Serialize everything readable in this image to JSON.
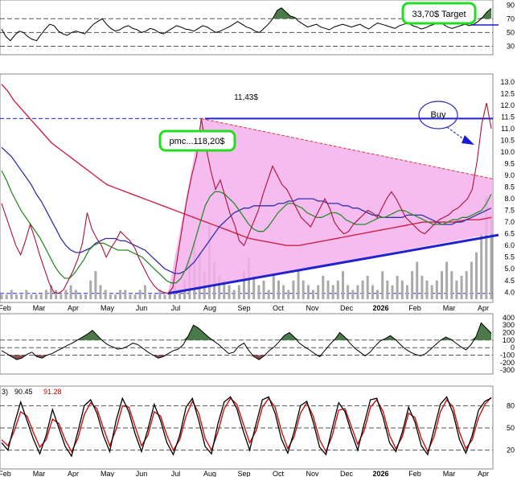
{
  "chart_data": {
    "type": "line",
    "panels": [
      {
        "id": "rsi",
        "ylim": [
          20,
          95
        ],
        "yticks": [
          30,
          50,
          70,
          90
        ],
        "ref_lines": [
          30,
          50,
          70
        ],
        "series": [
          {
            "values": [
              55,
              44,
              38,
              46,
              52,
              50,
              44,
              40,
              38,
              47,
              55,
              62,
              60,
              52,
              48,
              46,
              50,
              52,
              50,
              48,
              55,
              62,
              66,
              70,
              62,
              56,
              52,
              54,
              58,
              60,
              56,
              54,
              50,
              52,
              56,
              54,
              50,
              48,
              52,
              56,
              60,
              58,
              55,
              54,
              52,
              56,
              60,
              58,
              54,
              50,
              52,
              55,
              58,
              62,
              66,
              62,
              58,
              56,
              52,
              50,
              56,
              62,
              70,
              82,
              86,
              80,
              74,
              72,
              66,
              62,
              58,
              60,
              62,
              58,
              56,
              54,
              58,
              60,
              62,
              60,
              58,
              60,
              62,
              58,
              55,
              60,
              64,
              62,
              60,
              58,
              56,
              60,
              62,
              64,
              60,
              58,
              55,
              57,
              60,
              62,
              66,
              62,
              58,
              56,
              58,
              60,
              62,
              60,
              62,
              66,
              72,
              80,
              85
            ]
          }
        ]
      },
      {
        "id": "price",
        "ylim": [
          3.7,
          13.2
        ],
        "yticks": [
          4.0,
          4.5,
          5.0,
          5.5,
          6.0,
          6.5,
          7.0,
          7.5,
          8.0,
          8.5,
          9.0,
          9.5,
          10.0,
          10.5,
          11.0,
          11.5,
          12.0,
          12.5,
          13.0
        ],
        "ref_lines": [
          11.43,
          3.95
        ],
        "series": [
          {
            "name": "price",
            "values": [
              7.8,
              7.2,
              6.6,
              6.0,
              5.6,
              6.2,
              6.9,
              6.3,
              5.6,
              5.0,
              4.4,
              4.0,
              3.95,
              4.1,
              4.5,
              4.9,
              5.4,
              6.1,
              7.4,
              6.7,
              6.3,
              6.0,
              5.5,
              5.9,
              6.2,
              6.6,
              6.4,
              6.2,
              5.9,
              5.4,
              5.0,
              4.6,
              4.3,
              4.1,
              4.0,
              3.95,
              4.2,
              5.5,
              6.8,
              8.0,
              9.0,
              9.8,
              11.43,
              10.2,
              9.2,
              8.4,
              8.8,
              8.1,
              7.4,
              6.9,
              6.2,
              6.0,
              6.5,
              7.0,
              7.5,
              8.2,
              8.8,
              9.4,
              9.0,
              8.6,
              8.4,
              8.0,
              7.6,
              7.2,
              7.0,
              6.8,
              7.2,
              7.6,
              8.0,
              7.6,
              7.0,
              6.7,
              6.5,
              6.6,
              6.9,
              7.1,
              7.3,
              7.5,
              7.4,
              7.2,
              7.6,
              8.0,
              8.3,
              8.0,
              7.6,
              7.2,
              7.0,
              6.8,
              6.6,
              6.5,
              6.7,
              6.9,
              7.1,
              7.2,
              7.3,
              7.5,
              7.6,
              7.8,
              8.0,
              8.4,
              9.6,
              11.2,
              12.1,
              11.0
            ]
          },
          {
            "name": "ma-green",
            "values": [
              9.2,
              8.8,
              8.3,
              7.9,
              7.5,
              7.2,
              6.9,
              6.6,
              6.3,
              5.9,
              5.5,
              5.1,
              4.8,
              4.6,
              4.6,
              4.8,
              5.1,
              5.4,
              5.8,
              6.0,
              6.1,
              6.1,
              6.0,
              5.9,
              5.8,
              5.8,
              5.8,
              5.7,
              5.6,
              5.5,
              5.3,
              5.1,
              4.9,
              4.7,
              4.5,
              4.4,
              4.4,
              4.6,
              5.0,
              5.6,
              6.3,
              7.0,
              7.7,
              8.1,
              8.3,
              8.3,
              8.2,
              8.0,
              7.8,
              7.5,
              7.2,
              6.9,
              6.7,
              6.6,
              6.6,
              6.8,
              7.1,
              7.4,
              7.6,
              7.8,
              7.8,
              7.7,
              7.6,
              7.4,
              7.3,
              7.2,
              7.2,
              7.3,
              7.4,
              7.4,
              7.3,
              7.1,
              7.0,
              6.9,
              6.9,
              6.9,
              7.0,
              7.1,
              7.2,
              7.2,
              7.3,
              7.4,
              7.5,
              7.5,
              7.4,
              7.3,
              7.2,
              7.1,
              7.0,
              6.9,
              6.9,
              6.9,
              7.0,
              7.1,
              7.1,
              7.2,
              7.2,
              7.3,
              7.4,
              7.5,
              7.8,
              8.2
            ]
          },
          {
            "name": "ma-blue",
            "values": [
              10.2,
              10.0,
              9.8,
              9.5,
              9.2,
              8.9,
              8.6,
              8.2,
              7.9,
              7.5,
              7.1,
              6.7,
              6.3,
              6.0,
              5.8,
              5.7,
              5.7,
              5.8,
              5.9,
              6.1,
              6.2,
              6.3,
              6.3,
              6.3,
              6.2,
              6.2,
              6.1,
              6.0,
              5.9,
              5.8,
              5.6,
              5.4,
              5.2,
              5.0,
              4.9,
              4.8,
              4.8,
              4.9,
              5.1,
              5.3,
              5.6,
              5.9,
              6.2,
              6.5,
              6.8,
              7.0,
              7.2,
              7.4,
              7.5,
              7.6,
              7.6,
              7.7,
              7.7,
              7.7,
              7.7,
              7.7,
              7.8,
              7.8,
              7.9,
              7.9,
              8.0,
              8.0,
              8.0,
              8.0,
              7.9,
              7.9,
              7.8,
              7.8,
              7.8,
              7.7,
              7.7,
              7.6,
              7.6,
              7.5,
              7.4,
              7.3,
              7.3,
              7.2,
              7.2,
              7.2,
              7.2,
              7.2,
              7.3,
              7.3,
              7.3,
              7.3,
              7.2,
              7.1,
              7.0,
              6.9,
              6.9,
              6.9,
              7.0,
              7.0,
              7.1,
              7.2,
              7.3,
              7.4,
              7.5,
              7.6
            ]
          },
          {
            "name": "ma-red",
            "values": [
              12.9,
              12.6,
              12.2,
              11.9,
              11.6,
              11.3,
              11.0,
              10.7,
              10.4,
              10.2,
              10.0,
              9.8,
              9.6,
              9.4,
              9.2,
              9.0,
              8.8,
              8.6,
              8.5,
              8.4,
              8.3,
              8.2,
              8.1,
              8.0,
              7.9,
              7.8,
              7.7,
              7.6,
              7.5,
              7.4,
              7.3,
              7.2,
              7.1,
              7.0,
              6.9,
              6.8,
              6.7,
              6.6,
              6.5,
              6.4,
              6.3,
              6.25,
              6.2,
              6.15,
              6.1,
              6.05,
              6.0,
              6.0,
              6.0,
              6.05,
              6.1,
              6.15,
              6.2,
              6.25,
              6.3,
              6.35,
              6.4,
              6.45,
              6.5,
              6.55,
              6.6,
              6.65,
              6.7,
              6.75,
              6.8,
              6.85,
              6.9,
              6.95,
              7.0,
              7.0,
              7.0,
              7.0,
              7.0,
              7.0,
              7.05,
              7.1,
              7.1,
              7.1,
              7.15,
              7.2
            ]
          }
        ]
      },
      {
        "id": "cci",
        "ylim": [
          -320,
          420
        ],
        "yticks": [
          -300,
          -200,
          -100,
          0,
          100,
          200,
          300,
          400
        ],
        "ref_lines": [
          -100,
          0,
          100
        ],
        "series": [
          {
            "values": [
              -40,
              -80,
              -120,
              -160,
              -140,
              -90,
              -60,
              -120,
              -140,
              -100,
              -80,
              -40,
              -10,
              30,
              60,
              100,
              140,
              180,
              230,
              160,
              90,
              40,
              10,
              -20,
              -10,
              20,
              60,
              40,
              -10,
              -60,
              -100,
              -140,
              -120,
              -80,
              -40,
              -20,
              40,
              160,
              300,
              260,
              200,
              140,
              90,
              40,
              -20,
              -80,
              -60,
              20,
              60,
              -40,
              -120,
              -160,
              -110,
              -40,
              10,
              80,
              160,
              200,
              140,
              60,
              10,
              -30,
              -80,
              -120,
              -40,
              40,
              110,
              200,
              140,
              60,
              -10,
              -60,
              -110,
              -60,
              20,
              90,
              120,
              160,
              110,
              40,
              -20,
              -60,
              -90,
              -110,
              -80,
              -20,
              40,
              100,
              140,
              110,
              60,
              10,
              -30,
              40,
              150,
              330,
              260,
              190
            ]
          }
        ]
      },
      {
        "id": "stochastic",
        "ylim": [
          0,
          100
        ],
        "yticks": [
          20,
          50,
          80
        ],
        "ref_lines": [
          20,
          50,
          80
        ],
        "header_values": [
          "90.45",
          "91.28"
        ],
        "series": [
          {
            "name": "%K",
            "values": [
              30,
              20,
              55,
              85,
              60,
              35,
              15,
              40,
              75,
              50,
              25,
              12,
              45,
              80,
              88,
              70,
              40,
              18,
              60,
              90,
              72,
              42,
              18,
              48,
              82,
              60,
              30,
              14,
              40,
              78,
              90,
              60,
              25,
              15,
              55,
              85,
              92,
              76,
              46,
              20,
              55,
              88,
              92,
              70,
              35,
              16,
              45,
              80,
              86,
              58,
              24,
              14,
              50,
              84,
              72,
              44,
              20,
              55,
              88,
              90,
              64,
              30,
              18,
              44,
              78,
              58,
              26,
              14,
              48,
              82,
              92,
              70,
              34,
              16,
              40,
              74,
              86,
              90.45
            ]
          },
          {
            "name": "%D",
            "values": [
              34,
              26,
              46,
              72,
              66,
              44,
              24,
              34,
              62,
              56,
              34,
              18,
              36,
              68,
              84,
              76,
              50,
              26,
              48,
              80,
              78,
              52,
              26,
              40,
              72,
              66,
              40,
              20,
              34,
              66,
              86,
              70,
              36,
              20,
              44,
              76,
              90,
              82,
              56,
              30,
              46,
              78,
              90,
              78,
              46,
              22,
              38,
              70,
              84,
              66,
              34,
              18,
              40,
              74,
              76,
              52,
              28,
              46,
              78,
              88,
              72,
              40,
              22,
              38,
              70,
              64,
              36,
              18,
              38,
              72,
              88,
              78,
              44,
              22,
              34,
              64,
              82,
              91.28
            ]
          }
        ]
      }
    ],
    "months": [
      "Feb",
      "Mar",
      "Apr",
      "May",
      "Jun",
      "Jul",
      "Aug",
      "Sep",
      "Oct",
      "Nov",
      "Dec",
      "2026",
      "Feb",
      "Mar",
      "Apr"
    ],
    "stoch_months": [
      "Feb",
      "Mar",
      "Apr",
      "May",
      "Jun",
      "Jul",
      "Aug",
      "Sep",
      "Oct",
      "Nov",
      "Dec",
      "2026",
      "Feb",
      "Mar",
      "Apr"
    ],
    "volume": [
      1,
      1,
      2,
      1,
      1,
      2,
      1,
      1,
      1,
      2,
      3,
      2,
      1,
      2,
      3,
      2,
      1,
      1,
      4,
      6,
      3,
      2,
      1,
      1,
      2,
      2,
      1,
      1,
      2,
      3,
      1,
      1,
      2,
      1,
      2,
      3,
      2,
      4,
      8,
      12,
      10,
      6,
      16,
      8,
      5,
      4,
      3,
      2,
      3,
      6,
      9,
      5,
      3,
      4,
      2,
      5,
      4,
      3,
      2,
      4,
      6,
      4,
      3,
      2,
      3,
      5,
      4,
      3,
      4,
      6,
      3,
      2,
      3,
      4,
      5,
      3,
      2,
      6,
      4,
      3,
      5,
      4,
      3,
      6,
      8,
      5,
      4,
      3,
      4,
      6,
      8,
      6,
      4,
      5,
      6,
      8,
      10,
      14,
      22,
      18
    ],
    "annotations": {
      "target": "33,70$ Target",
      "pmc": "pmc...118,20$",
      "high": "11,43$",
      "buy": "Buy"
    }
  }
}
